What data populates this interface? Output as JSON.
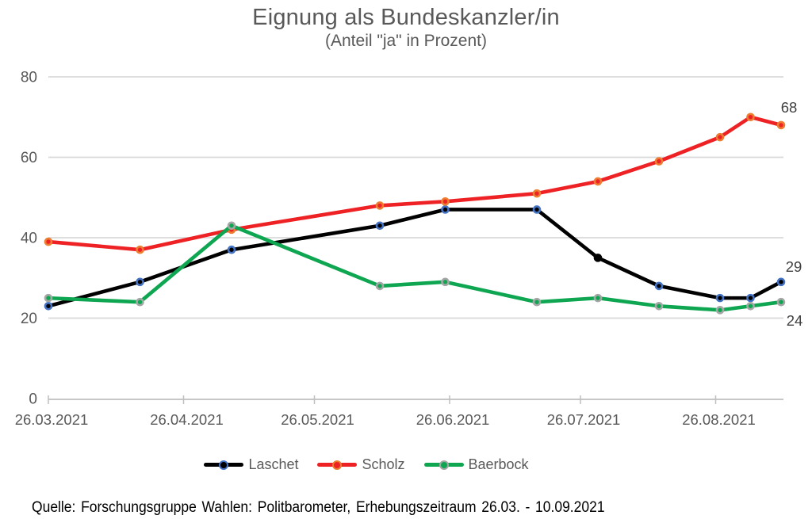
{
  "title": "Eignung als Bundeskanzler/in",
  "subtitle": "(Anteil \"ja\" in Prozent)",
  "source": "Quelle: Forschungsgruppe Wahlen: Politbarometer, Erhebungszeitraum 26.03. - 10.09.2021",
  "colors": {
    "title": "#595959",
    "axis_label": "#595959",
    "gridline": "#d9d9d9",
    "axis_line": "#bfbfbf",
    "end_label": "#404040",
    "background": "#ffffff"
  },
  "chart_data": {
    "type": "line",
    "x_axis": {
      "tick_labels": [
        "26.03.2021",
        "26.04.2021",
        "26.05.2021",
        "26.06.2021",
        "26.07.2021",
        "26.08.2021"
      ],
      "tick_days_since_first": [
        0,
        31,
        61,
        92,
        122,
        153
      ]
    },
    "y_axis": {
      "tick_values": [
        0,
        20,
        40,
        60,
        80
      ],
      "range": [
        0,
        80
      ],
      "grid": true
    },
    "x_days_since_first": [
      0,
      21,
      42,
      76,
      91,
      112,
      126,
      140,
      154,
      161,
      168
    ],
    "series": [
      {
        "name": "Laschet",
        "color": "#000000",
        "marker_fill": "#000000",
        "marker_ring": "#4472c4",
        "values": [
          23,
          29,
          37,
          43,
          47,
          47,
          35,
          28,
          25,
          25,
          29
        ],
        "end_label": "29",
        "marker_overrides": [
          {
            "index": 6,
            "ring": "#000000"
          }
        ]
      },
      {
        "name": "Scholz",
        "color": "#ee2224",
        "marker_fill": "#ee2224",
        "marker_ring": "#ed7d31",
        "values": [
          39,
          37,
          42,
          48,
          49,
          51,
          54,
          59,
          65,
          70,
          68
        ],
        "end_label": "68",
        "marker_overrides": []
      },
      {
        "name": "Baerbock",
        "color": "#0fa652",
        "marker_fill": "#0fa652",
        "marker_ring": "#a6a6a6",
        "values": [
          25,
          24,
          43,
          28,
          29,
          24,
          25,
          23,
          22,
          23,
          24
        ],
        "end_label": "24",
        "marker_overrides": []
      }
    ],
    "legend_position": "bottom"
  }
}
